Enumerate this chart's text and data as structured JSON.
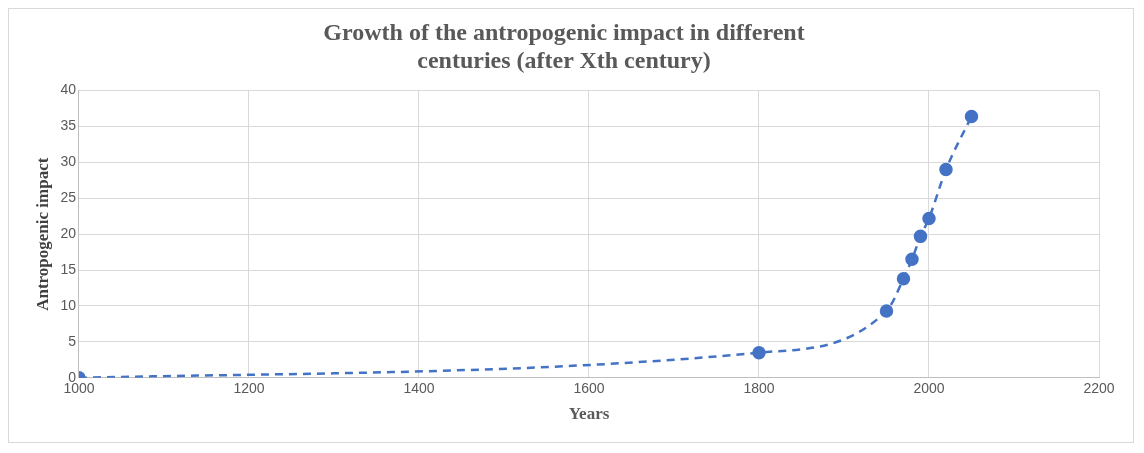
{
  "chart_data": {
    "type": "line",
    "title": "Growth of the antropogenic impact in different centuries (after Xth century)",
    "xlabel": "Years",
    "ylabel": "Antropogenic impact",
    "x": [
      1000,
      1800,
      1950,
      1970,
      1980,
      1990,
      2000,
      2020,
      2050
    ],
    "series": [
      {
        "color": "#4472c4",
        "values": [
          0,
          3.5,
          9.3,
          13.8,
          16.5,
          19.7,
          22.2,
          29,
          36.4
        ]
      }
    ],
    "xlim": [
      1000,
      2200
    ],
    "xticks": [
      1000,
      1200,
      1400,
      1600,
      1800,
      2000,
      2200
    ],
    "ylim": [
      0,
      40
    ],
    "yticks": [
      0,
      5,
      10,
      15,
      20,
      25,
      30,
      35,
      40
    ],
    "grid": true,
    "legend": false,
    "marker": "circle",
    "line_style": "dashed"
  }
}
